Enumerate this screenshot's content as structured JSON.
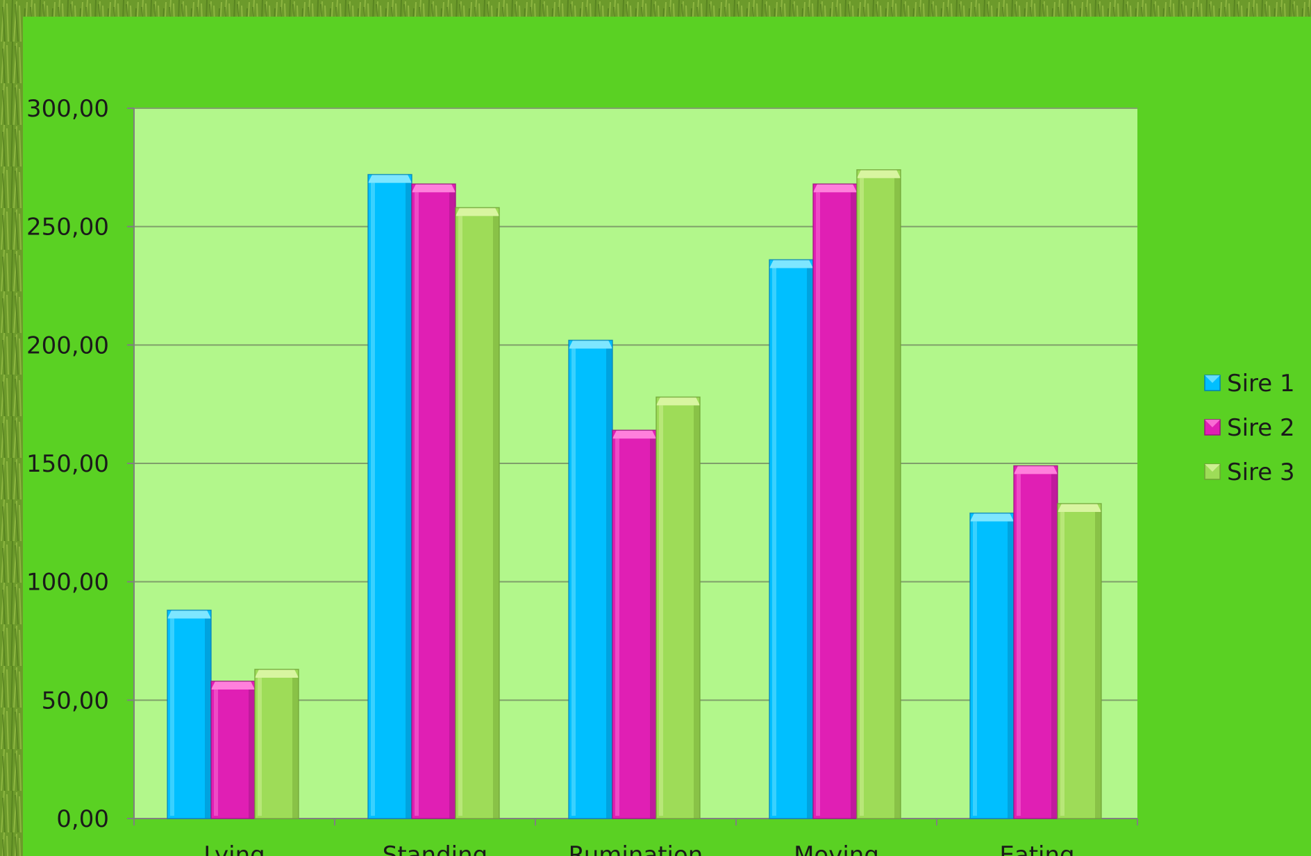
{
  "chart_data": {
    "type": "bar",
    "title": "",
    "xlabel": "",
    "ylabel": "",
    "categories": [
      "Lying",
      "Standing",
      "Rumination",
      "Moving",
      "Eating"
    ],
    "series": [
      {
        "name": "Sire 1",
        "values": [
          88,
          272,
          202,
          236,
          129
        ]
      },
      {
        "name": "Sire 2",
        "values": [
          58,
          268,
          164,
          268,
          149
        ]
      },
      {
        "name": "Sire 3",
        "values": [
          63,
          258,
          178,
          274,
          133
        ]
      }
    ],
    "ylim": [
      0,
      300
    ],
    "yticks": [
      0,
      50,
      100,
      150,
      200,
      250,
      300
    ],
    "ytick_labels": [
      "0,00",
      "50,00",
      "100,00",
      "150,00",
      "200,00",
      "250,00",
      "300,00"
    ],
    "grid": true,
    "legend_position": "right",
    "colors": {
      "series": [
        "#00bfff",
        "#e01fb4",
        "#9edc58"
      ],
      "series_dark": [
        "#0080b8",
        "#9a1480",
        "#6ea234"
      ],
      "series_light": [
        "#7ee6ff",
        "#ff80dc",
        "#d8f5a0"
      ],
      "chart_area": "#5ad123",
      "plot_area": "#b2f78b",
      "gridline": "#7f9f6a",
      "axis": "#808080"
    }
  }
}
